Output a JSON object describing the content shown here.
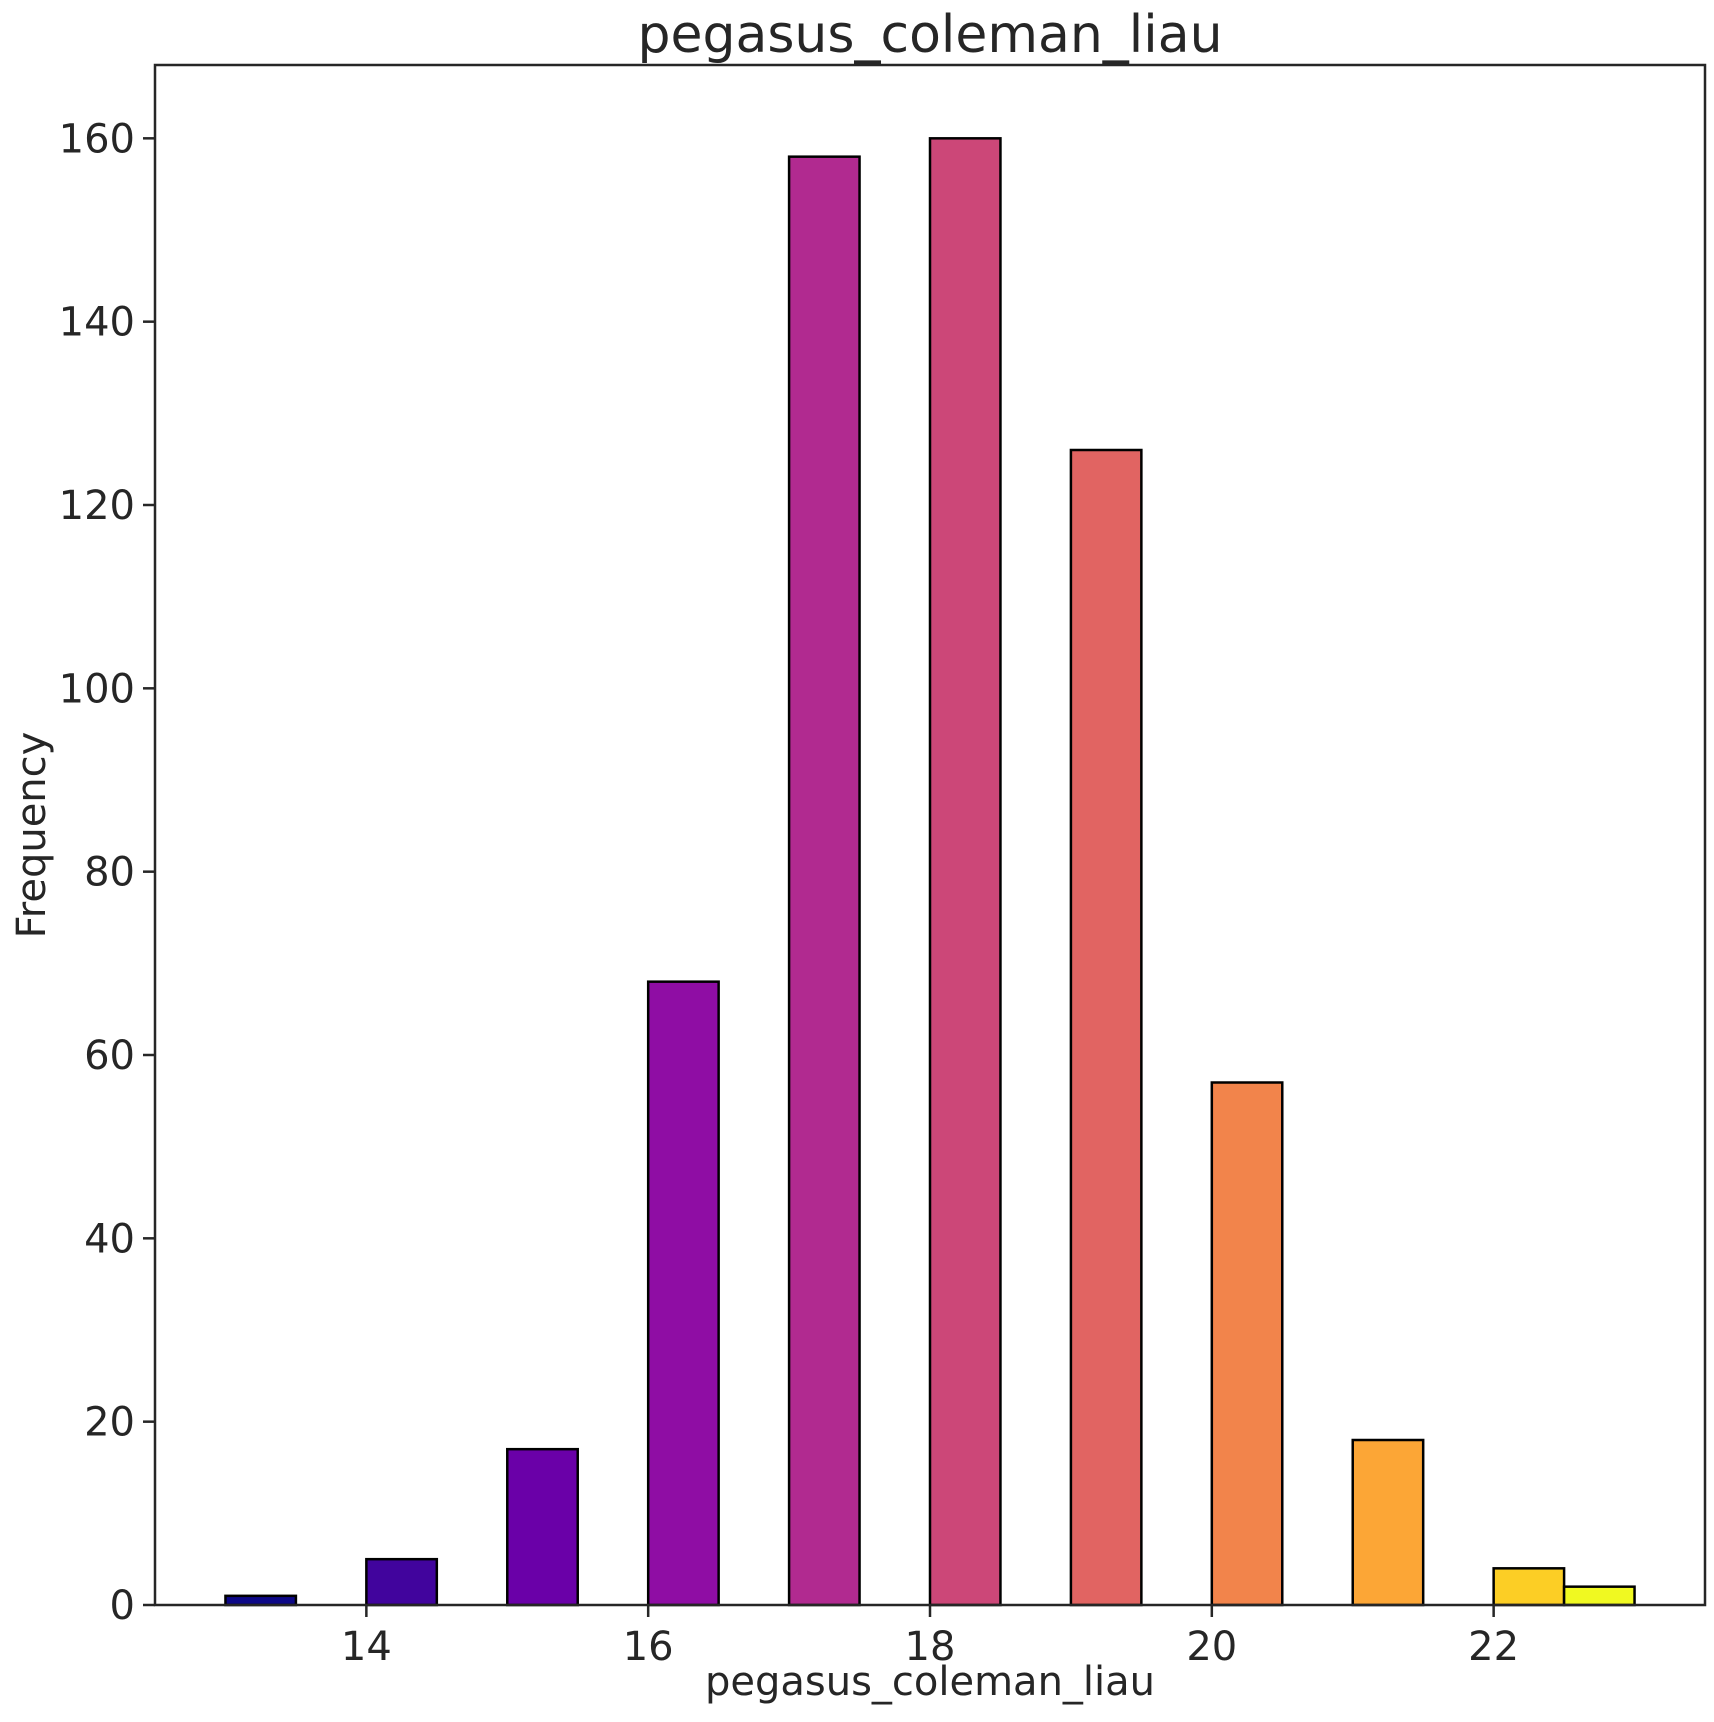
{
  "chart_data": {
    "type": "bar",
    "title": "pegasus_coleman_liau",
    "xlabel": "pegasus_coleman_liau",
    "ylabel": "Frequency",
    "xlim": [
      12.5,
      23.5
    ],
    "ylim": [
      0,
      168
    ],
    "xticks": [
      14,
      16,
      18,
      20,
      22
    ],
    "yticks": [
      0,
      20,
      40,
      60,
      80,
      100,
      120,
      140,
      160
    ],
    "grid": false,
    "bars": [
      {
        "x0": 13.0,
        "x1": 13.5,
        "value": 1,
        "color": "#0d0887"
      },
      {
        "x0": 14.0,
        "x1": 14.5,
        "value": 5,
        "color": "#41049d"
      },
      {
        "x0": 15.0,
        "x1": 15.5,
        "value": 17,
        "color": "#6a00a8"
      },
      {
        "x0": 16.0,
        "x1": 16.5,
        "value": 68,
        "color": "#8f0da4"
      },
      {
        "x0": 17.0,
        "x1": 17.5,
        "value": 158,
        "color": "#b12a90"
      },
      {
        "x0": 18.0,
        "x1": 18.5,
        "value": 160,
        "color": "#cc4778"
      },
      {
        "x0": 19.0,
        "x1": 19.5,
        "value": 126,
        "color": "#e16462"
      },
      {
        "x0": 20.0,
        "x1": 20.5,
        "value": 57,
        "color": "#f2844b"
      },
      {
        "x0": 21.0,
        "x1": 21.5,
        "value": 18,
        "color": "#fca636"
      },
      {
        "x0": 22.0,
        "x1": 22.5,
        "value": 4,
        "color": "#fcce25"
      },
      {
        "x0": 22.5,
        "x1": 23.0,
        "value": 2,
        "color": "#f0f921"
      }
    ]
  }
}
